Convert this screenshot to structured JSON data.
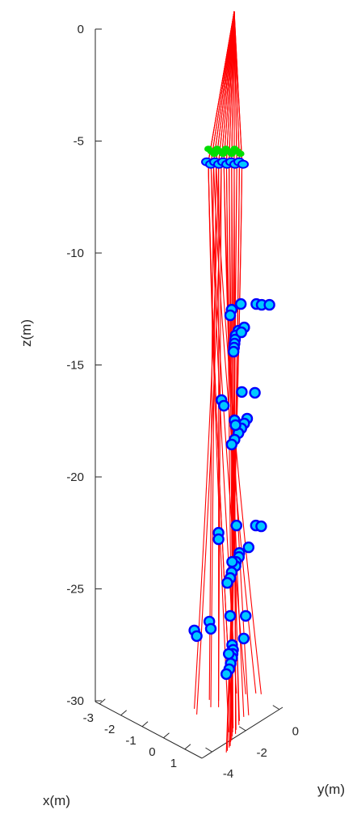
{
  "chart_data": {
    "type": "scatter",
    "title": "",
    "xlabel": "x(m)",
    "ylabel": "y(m)",
    "zlabel": "z(m)",
    "z_ticks": [
      "0",
      "-5",
      "-10",
      "-15",
      "-20",
      "-25",
      "-30"
    ],
    "x_ticks": [
      "-3",
      "-2",
      "-1",
      "0",
      "1"
    ],
    "y_ticks": [
      "0",
      "-2",
      "-4"
    ],
    "zlim": [
      -30.5,
      0
    ],
    "grid": false,
    "colors": {
      "lines": "#ff0000",
      "marker_face": "#00c8ff",
      "marker_edge": "#0000ff",
      "top_green": "#00dd00",
      "axis": "#262626"
    },
    "source_depth": -6,
    "marker_layers": [
      {
        "z": -13,
        "points": [
          {
            "x": -2.6,
            "y": -0.6
          },
          {
            "x": -2.2,
            "y": -0.2
          },
          {
            "x": -2.0,
            "y": -0.1
          },
          {
            "x": -1.8,
            "y": 0.1
          },
          {
            "x": -2.4,
            "y": -1.1
          },
          {
            "x": -2.0,
            "y": -1.4
          },
          {
            "x": -0.6,
            "y": -1.9
          },
          {
            "x": -0.3,
            "y": -2.2
          },
          {
            "x": 0.0,
            "y": -2.4
          },
          {
            "x": 0.3,
            "y": -2.6
          },
          {
            "x": 0.6,
            "y": -2.8
          },
          {
            "x": 0.9,
            "y": -3.0
          },
          {
            "x": -0.7,
            "y": -1.6
          },
          {
            "x": -0.4,
            "y": -1.9
          }
        ]
      },
      {
        "z": -17,
        "points": [
          {
            "x": -2.7,
            "y": -0.5
          },
          {
            "x": -2.3,
            "y": -0.2
          },
          {
            "x": -2.6,
            "y": -1.4
          },
          {
            "x": -2.1,
            "y": -1.6
          },
          {
            "x": -0.5,
            "y": -1.6
          },
          {
            "x": -0.2,
            "y": -1.9
          },
          {
            "x": 0.1,
            "y": -2.2
          },
          {
            "x": 0.4,
            "y": -2.5
          },
          {
            "x": 0.8,
            "y": -2.9
          },
          {
            "x": 1.1,
            "y": -3.2
          },
          {
            "x": -0.7,
            "y": -2.0
          },
          {
            "x": -0.3,
            "y": -2.2
          }
        ]
      },
      {
        "z": -23,
        "points": [
          {
            "x": -2.9,
            "y": -0.6
          },
          {
            "x": -2.4,
            "y": -0.1
          },
          {
            "x": -2.2,
            "y": 0.0
          },
          {
            "x": -2.8,
            "y": -1.4
          },
          {
            "x": -2.3,
            "y": -1.7
          },
          {
            "x": -0.9,
            "y": -1.3
          },
          {
            "x": -0.7,
            "y": -1.8
          },
          {
            "x": -0.4,
            "y": -2.0
          },
          {
            "x": -0.1,
            "y": -2.3
          },
          {
            "x": 0.2,
            "y": -2.5
          },
          {
            "x": 0.6,
            "y": -2.9
          },
          {
            "x": 1.0,
            "y": -3.2
          },
          {
            "x": 1.3,
            "y": -3.5
          },
          {
            "x": -0.2,
            "y": -2.4
          }
        ]
      },
      {
        "z": -27,
        "points": [
          {
            "x": -3.0,
            "y": -0.8
          },
          {
            "x": -2.6,
            "y": -0.4
          },
          {
            "x": -3.1,
            "y": -1.6
          },
          {
            "x": -2.5,
            "y": -1.9
          },
          {
            "x": -2.8,
            "y": -2.4
          },
          {
            "x": -2.3,
            "y": -2.6
          },
          {
            "x": -0.9,
            "y": -1.5
          },
          {
            "x": -0.7,
            "y": -2.1
          },
          {
            "x": -0.3,
            "y": -2.3
          },
          {
            "x": 0.0,
            "y": -2.5
          },
          {
            "x": 0.3,
            "y": -2.7
          },
          {
            "x": 0.7,
            "y": -3.0
          },
          {
            "x": 1.1,
            "y": -3.3
          },
          {
            "x": 1.4,
            "y": -3.6
          },
          {
            "x": -0.1,
            "y": -2.6
          }
        ]
      }
    ]
  }
}
